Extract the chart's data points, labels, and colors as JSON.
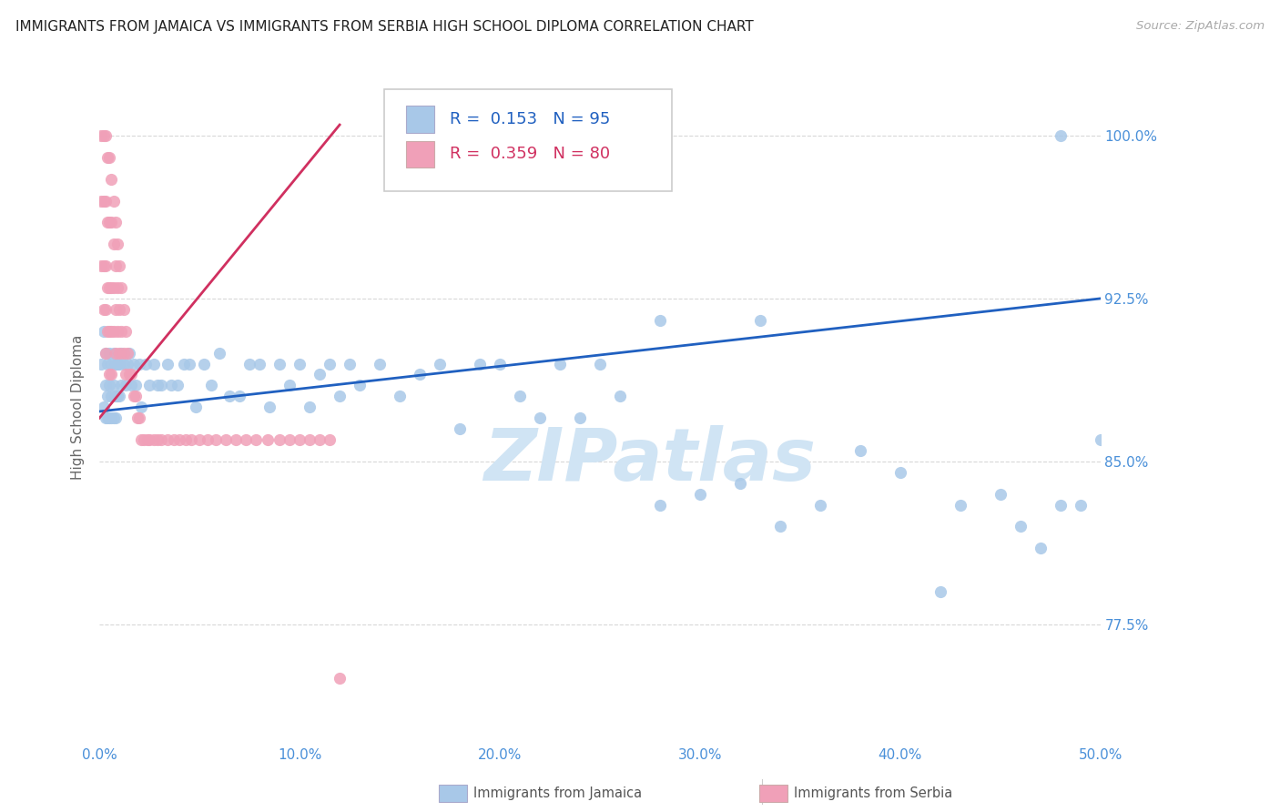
{
  "title": "IMMIGRANTS FROM JAMAICA VS IMMIGRANTS FROM SERBIA HIGH SCHOOL DIPLOMA CORRELATION CHART",
  "source": "Source: ZipAtlas.com",
  "ylabel": "High School Diploma",
  "xlim": [
    0.0,
    0.5
  ],
  "ylim": [
    0.72,
    1.03
  ],
  "yticks": [
    0.775,
    0.85,
    0.925,
    1.0
  ],
  "ytick_labels": [
    "77.5%",
    "85.0%",
    "92.5%",
    "100.0%"
  ],
  "xticks": [
    0.0,
    0.1,
    0.2,
    0.3,
    0.4,
    0.5
  ],
  "xtick_labels": [
    "0.0%",
    "10.0%",
    "20.0%",
    "30.0%",
    "40.0%",
    "50.0%"
  ],
  "jamaica_R": 0.153,
  "jamaica_N": 95,
  "serbia_R": 0.359,
  "serbia_N": 80,
  "jamaica_color": "#a8c8e8",
  "serbia_color": "#f0a0b8",
  "jamaica_line_color": "#2060c0",
  "serbia_line_color": "#d03060",
  "axis_tick_color": "#4a90d9",
  "watermark_color": "#d0e4f4",
  "grid_color": "#d8d8d8",
  "jamaica_x": [
    0.001,
    0.002,
    0.002,
    0.003,
    0.003,
    0.003,
    0.004,
    0.004,
    0.004,
    0.005,
    0.005,
    0.005,
    0.006,
    0.006,
    0.006,
    0.007,
    0.007,
    0.007,
    0.008,
    0.008,
    0.008,
    0.009,
    0.009,
    0.01,
    0.01,
    0.011,
    0.011,
    0.012,
    0.013,
    0.014,
    0.015,
    0.016,
    0.017,
    0.018,
    0.02,
    0.021,
    0.023,
    0.025,
    0.027,
    0.029,
    0.031,
    0.034,
    0.036,
    0.039,
    0.042,
    0.045,
    0.048,
    0.052,
    0.056,
    0.06,
    0.065,
    0.07,
    0.075,
    0.08,
    0.085,
    0.09,
    0.095,
    0.1,
    0.105,
    0.11,
    0.115,
    0.12,
    0.125,
    0.13,
    0.14,
    0.15,
    0.16,
    0.17,
    0.18,
    0.19,
    0.2,
    0.21,
    0.22,
    0.23,
    0.24,
    0.25,
    0.26,
    0.28,
    0.3,
    0.32,
    0.34,
    0.36,
    0.38,
    0.4,
    0.42,
    0.43,
    0.45,
    0.46,
    0.47,
    0.48,
    0.49,
    0.5,
    0.28,
    0.33,
    0.48
  ],
  "jamaica_y": [
    0.895,
    0.91,
    0.875,
    0.9,
    0.885,
    0.87,
    0.895,
    0.88,
    0.87,
    0.9,
    0.885,
    0.87,
    0.895,
    0.88,
    0.87,
    0.9,
    0.885,
    0.87,
    0.895,
    0.88,
    0.87,
    0.895,
    0.88,
    0.895,
    0.88,
    0.9,
    0.885,
    0.895,
    0.885,
    0.895,
    0.9,
    0.885,
    0.895,
    0.885,
    0.895,
    0.875,
    0.895,
    0.885,
    0.895,
    0.885,
    0.885,
    0.895,
    0.885,
    0.885,
    0.895,
    0.895,
    0.875,
    0.895,
    0.885,
    0.9,
    0.88,
    0.88,
    0.895,
    0.895,
    0.875,
    0.895,
    0.885,
    0.895,
    0.875,
    0.89,
    0.895,
    0.88,
    0.895,
    0.885,
    0.895,
    0.88,
    0.89,
    0.895,
    0.865,
    0.895,
    0.895,
    0.88,
    0.87,
    0.895,
    0.87,
    0.895,
    0.88,
    0.83,
    0.835,
    0.84,
    0.82,
    0.83,
    0.855,
    0.845,
    0.79,
    0.83,
    0.835,
    0.82,
    0.81,
    0.83,
    0.83,
    0.86,
    0.915,
    0.915,
    1.0
  ],
  "serbia_x": [
    0.001,
    0.001,
    0.001,
    0.002,
    0.002,
    0.002,
    0.002,
    0.003,
    0.003,
    0.003,
    0.003,
    0.003,
    0.004,
    0.004,
    0.004,
    0.004,
    0.005,
    0.005,
    0.005,
    0.005,
    0.005,
    0.006,
    0.006,
    0.006,
    0.006,
    0.006,
    0.007,
    0.007,
    0.007,
    0.007,
    0.008,
    0.008,
    0.008,
    0.008,
    0.009,
    0.009,
    0.009,
    0.01,
    0.01,
    0.01,
    0.011,
    0.011,
    0.012,
    0.012,
    0.013,
    0.013,
    0.014,
    0.015,
    0.016,
    0.017,
    0.018,
    0.019,
    0.02,
    0.021,
    0.022,
    0.024,
    0.025,
    0.027,
    0.029,
    0.031,
    0.034,
    0.037,
    0.04,
    0.043,
    0.046,
    0.05,
    0.054,
    0.058,
    0.063,
    0.068,
    0.073,
    0.078,
    0.084,
    0.09,
    0.095,
    0.1,
    0.105,
    0.11,
    0.115,
    0.12
  ],
  "serbia_y": [
    1.0,
    0.97,
    0.94,
    1.0,
    0.97,
    0.94,
    0.92,
    1.0,
    0.97,
    0.94,
    0.92,
    0.9,
    0.99,
    0.96,
    0.93,
    0.91,
    0.99,
    0.96,
    0.93,
    0.91,
    0.89,
    0.98,
    0.96,
    0.93,
    0.91,
    0.89,
    0.97,
    0.95,
    0.93,
    0.91,
    0.96,
    0.94,
    0.92,
    0.9,
    0.95,
    0.93,
    0.91,
    0.94,
    0.92,
    0.9,
    0.93,
    0.91,
    0.92,
    0.9,
    0.91,
    0.89,
    0.9,
    0.89,
    0.89,
    0.88,
    0.88,
    0.87,
    0.87,
    0.86,
    0.86,
    0.86,
    0.86,
    0.86,
    0.86,
    0.86,
    0.86,
    0.86,
    0.86,
    0.86,
    0.86,
    0.86,
    0.86,
    0.86,
    0.86,
    0.86,
    0.86,
    0.86,
    0.86,
    0.86,
    0.86,
    0.86,
    0.86,
    0.86,
    0.86,
    0.75
  ]
}
